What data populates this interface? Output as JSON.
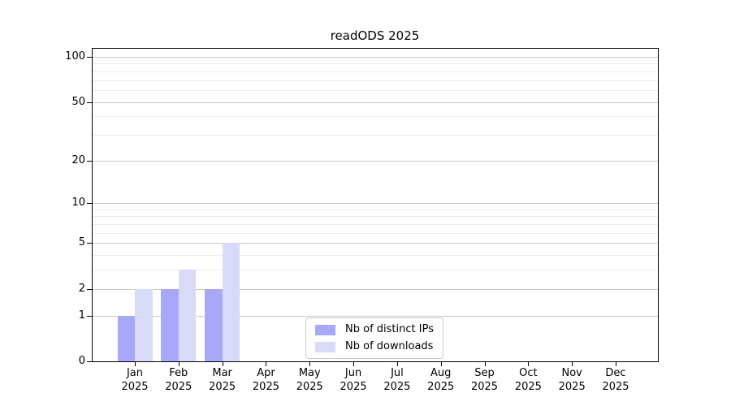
{
  "chart_data": {
    "type": "bar",
    "title": "readODS 2025",
    "x_axis": {
      "months": [
        "Jan",
        "Feb",
        "Mar",
        "Apr",
        "May",
        "Jun",
        "Jul",
        "Aug",
        "Sep",
        "Oct",
        "Nov",
        "Dec"
      ],
      "year": "2025"
    },
    "series": [
      {
        "name": "Nb of distinct IPs",
        "color": "#a8a8f8",
        "values": [
          1,
          2,
          2,
          0,
          0,
          0,
          0,
          0,
          0,
          0,
          0,
          0
        ]
      },
      {
        "name": "Nb of downloads",
        "color": "#d9d9f8",
        "values": [
          2,
          3,
          5,
          0,
          0,
          0,
          0,
          0,
          0,
          0,
          0,
          0
        ]
      }
    ],
    "y_axis": {
      "scale": "log1p",
      "major_ticks": [
        0,
        1,
        2,
        5,
        10,
        20,
        50,
        100
      ],
      "minor_gridlines": [
        3,
        4,
        6,
        7,
        8,
        9,
        30,
        40,
        60,
        70,
        80,
        90
      ],
      "ylim": [
        0,
        100
      ]
    },
    "legend": {
      "position": "lower center",
      "entries": [
        "Nb of distinct IPs",
        "Nb of downloads"
      ]
    },
    "grid": true,
    "colors": {
      "major_grid": "#c8c8c8",
      "minor_grid": "#ececec",
      "spine": "#000000",
      "text": "#000000",
      "background": "#ffffff"
    }
  }
}
